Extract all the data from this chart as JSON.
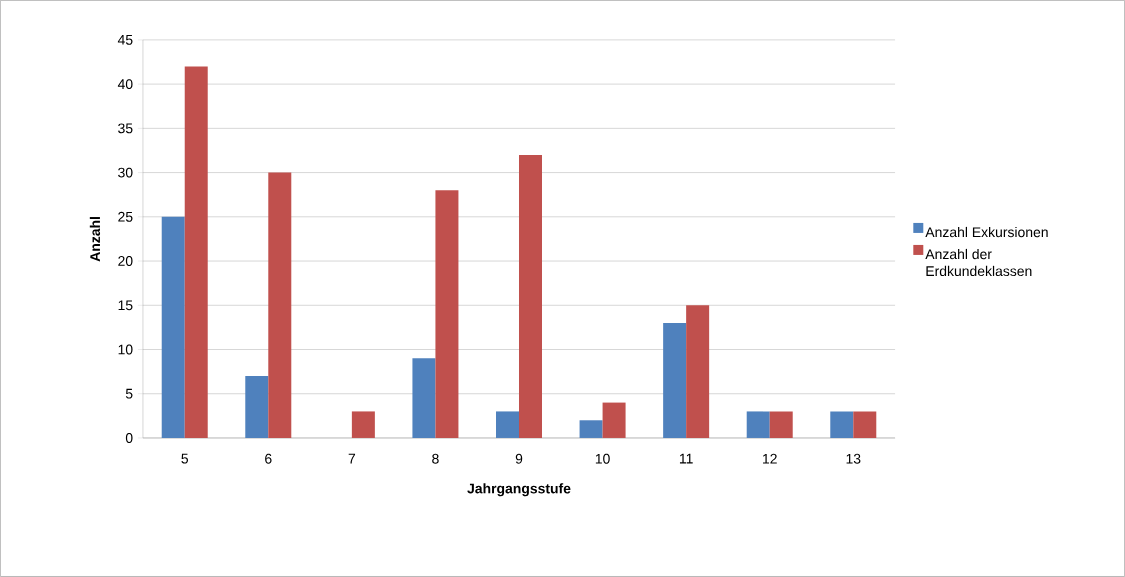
{
  "chart_data": {
    "type": "bar",
    "xlabel": "Jahrgangsstufe",
    "ylabel": "Anzahl",
    "categories": [
      "5",
      "6",
      "7",
      "8",
      "9",
      "10",
      "11",
      "12",
      "13"
    ],
    "series": [
      {
        "name": "Anzahl Exkursionen",
        "color": "#4f81bd",
        "values": [
          25,
          7,
          0,
          9,
          3,
          2,
          13,
          3,
          3
        ]
      },
      {
        "name": "Anzahl der Erdkundeklassen",
        "color": "#c0504d",
        "values": [
          42,
          30,
          3,
          28,
          32,
          4,
          15,
          3,
          3
        ]
      }
    ],
    "ylim": [
      0,
      45
    ],
    "yticks": [
      0,
      5,
      10,
      15,
      20,
      25,
      30,
      35,
      40,
      45
    ],
    "grid": "y",
    "legend": "right"
  }
}
